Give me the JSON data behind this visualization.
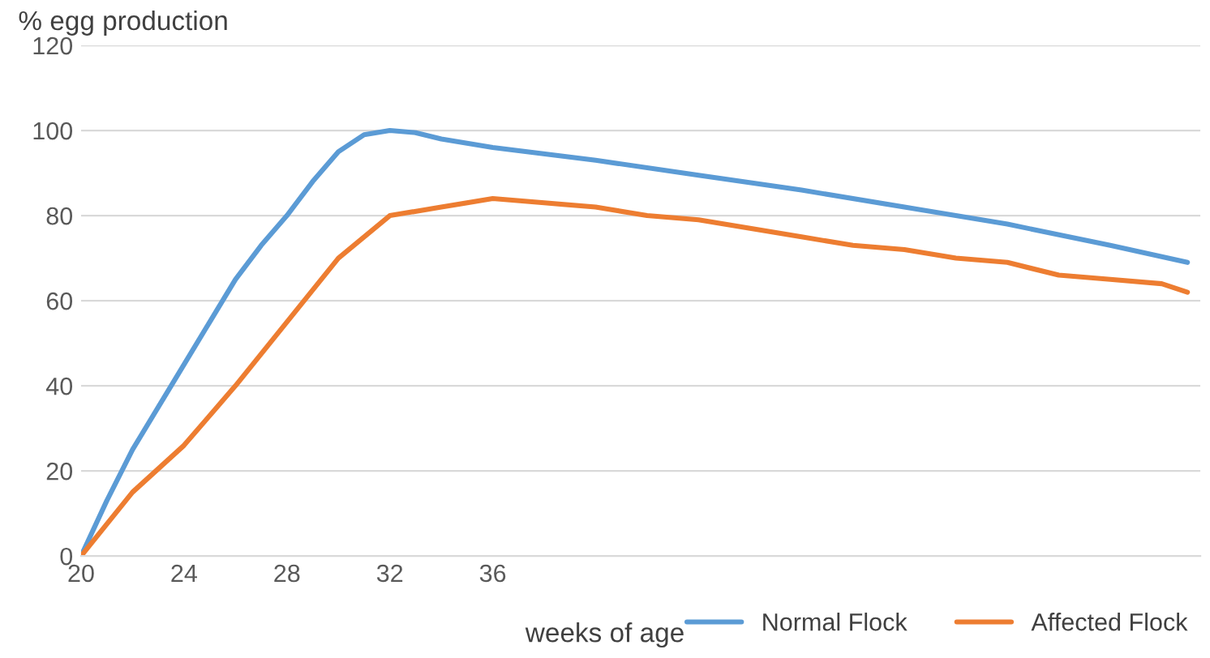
{
  "chart_data": {
    "type": "line",
    "xlabel": "weeks of age",
    "ylabel": "% egg production",
    "xlim": [
      20,
      63.5
    ],
    "xticks": [
      20,
      24,
      28,
      32,
      36
    ],
    "ylim": [
      0,
      120
    ],
    "yticks": [
      0,
      20,
      40,
      60,
      80,
      100,
      120
    ],
    "grid": "y",
    "legend": "bottom right",
    "marker": "none",
    "line_style": "solid",
    "series": [
      {
        "name": "Normal Flock",
        "color": "#5b9bd5",
        "x": [
          20,
          21,
          22,
          23,
          24,
          25,
          26,
          27,
          28,
          29,
          30,
          31,
          32,
          33,
          34,
          36,
          40,
          44,
          48,
          52,
          56,
          60,
          63
        ],
        "values": [
          0,
          13,
          25,
          35,
          45,
          55,
          65,
          73,
          80,
          88,
          95,
          99,
          100,
          99.5,
          98,
          96,
          93,
          89.5,
          86,
          82,
          78,
          73,
          69
        ]
      },
      {
        "name": "Affected Flock",
        "color": "#ed7d31",
        "x": [
          20,
          22,
          24,
          26,
          28,
          30,
          32,
          34,
          36,
          38,
          40,
          42,
          44,
          46,
          48,
          50,
          52,
          54,
          56,
          58,
          60,
          62,
          63
        ],
        "values": [
          0,
          15,
          26,
          40,
          55,
          70,
          80,
          82,
          84,
          83,
          82,
          80,
          79,
          77,
          75,
          73,
          72,
          70,
          69,
          66,
          65,
          64,
          62
        ]
      }
    ]
  }
}
